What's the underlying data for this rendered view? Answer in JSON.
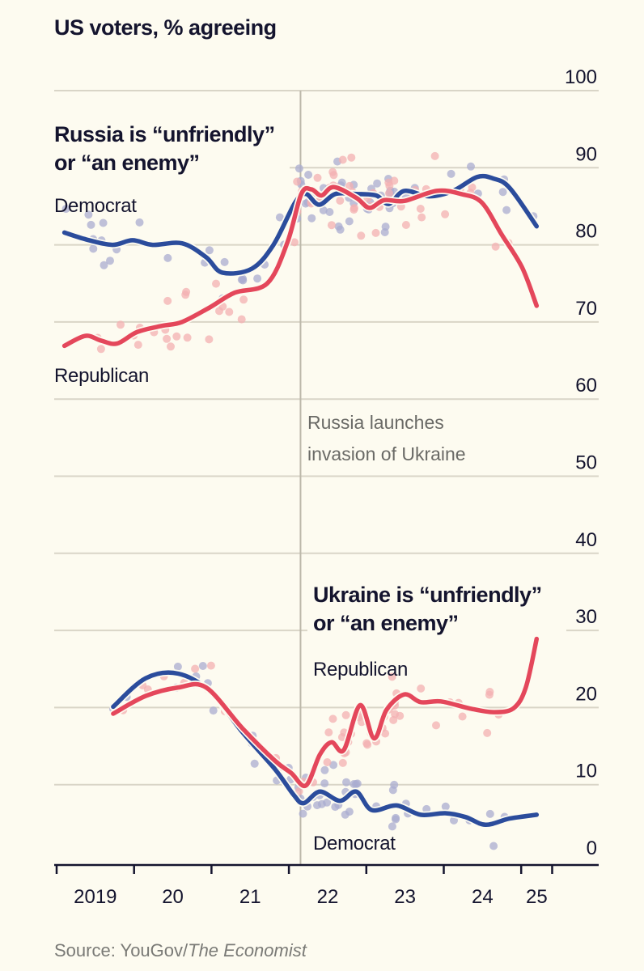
{
  "chart_data": {
    "type": "line",
    "title": "US voters, % agreeing",
    "source_prefix": "Source: YouGov/",
    "source_italic": "The Economist",
    "ylabel": "% agreeing",
    "ylim": [
      0,
      100
    ],
    "yticks": [
      0,
      10,
      20,
      30,
      40,
      50,
      60,
      70,
      80,
      90,
      100
    ],
    "xlim": [
      2019.0,
      2025.4
    ],
    "xticks": [
      2019,
      2020,
      2021,
      2022,
      2023,
      2024,
      2025,
      2025.4
    ],
    "xtick_labels": [
      {
        "label": "2019",
        "at": 2019.5
      },
      {
        "label": "20",
        "at": 2020.5
      },
      {
        "label": "21",
        "at": 2021.5
      },
      {
        "label": "22",
        "at": 2022.5
      },
      {
        "label": "23",
        "at": 2023.5
      },
      {
        "label": "24",
        "at": 2024.5
      },
      {
        "label": "25",
        "at": 2025.2
      }
    ],
    "grid": true,
    "event": {
      "x": 2022.15,
      "label_lines": [
        "Russia launches",
        "invasion of Ukraine"
      ]
    },
    "colors": {
      "Democrat": "#2b4c9c",
      "Republican": "#e4475b",
      "Democrat_dots": "#a9acd0",
      "Republican_dots": "#f3b0b2",
      "background": "#fdfbf0",
      "grid": "#d9d5c7"
    },
    "panels": [
      {
        "title_lines": [
          "Russia is “unfriendly”",
          "or “an enemy”"
        ],
        "series": [
          {
            "name": "Democrat",
            "label": "Democrat",
            "x": [
              2019.1,
              2019.38,
              2019.72,
              2019.98,
              2020.24,
              2020.62,
              2020.93,
              2021.14,
              2021.52,
              2021.8,
              2022.08,
              2022.22,
              2022.39,
              2022.6,
              2022.87,
              2023.13,
              2023.29,
              2023.49,
              2023.81,
              2024.12,
              2024.43,
              2024.64,
              2024.85,
              2025.2
            ],
            "values": [
              81.6,
              80.7,
              80.0,
              80.6,
              80.0,
              80.2,
              78.4,
              76.4,
              76.9,
              80.0,
              85.5,
              86.6,
              85.2,
              86.6,
              86.6,
              86.4,
              85.3,
              87.0,
              86.3,
              87.0,
              88.8,
              88.6,
              87.4,
              82.4
            ]
          },
          {
            "name": "Republican",
            "label": "Republican",
            "x": [
              2019.1,
              2019.37,
              2019.57,
              2019.78,
              2020.04,
              2020.36,
              2020.62,
              2020.98,
              2021.3,
              2021.72,
              2021.98,
              2022.16,
              2022.29,
              2022.42,
              2022.58,
              2022.87,
              2023.04,
              2023.23,
              2023.49,
              2023.91,
              2024.22,
              2024.49,
              2024.75,
              2025.01,
              2025.2
            ],
            "values": [
              66.9,
              68.2,
              67.6,
              67.2,
              68.7,
              69.5,
              70.0,
              71.9,
              73.8,
              75.0,
              80.3,
              86.6,
              87.2,
              86.4,
              87.5,
              86.1,
              84.8,
              85.8,
              85.7,
              87.0,
              86.6,
              85.5,
              81.3,
              77.1,
              72.1
            ]
          }
        ]
      },
      {
        "title_lines": [
          "Ukraine is “unfriendly”",
          "or “an enemy”"
        ],
        "series": [
          {
            "name": "Democrat",
            "label": "Democrat",
            "x": [
              2019.73,
              2020.15,
              2020.57,
              2020.99,
              2021.4,
              2021.82,
              2022.06,
              2022.19,
              2022.4,
              2022.66,
              2022.87,
              2023.07,
              2023.39,
              2023.7,
              2024.02,
              2024.28,
              2024.54,
              2024.85,
              2025.2
            ],
            "values": [
              20.1,
              23.8,
              24.4,
              22.0,
              16.8,
              12.0,
              8.7,
              7.6,
              9.1,
              7.9,
              9.1,
              6.7,
              7.3,
              6.1,
              6.3,
              5.8,
              4.8,
              5.6,
              6.1
            ]
          },
          {
            "name": "Republican",
            "label": "Republican",
            "x": [
              2019.73,
              2020.15,
              2020.57,
              2020.93,
              2021.4,
              2021.82,
              2022.03,
              2022.22,
              2022.4,
              2022.55,
              2022.71,
              2022.92,
              2023.1,
              2023.26,
              2023.49,
              2023.7,
              2023.96,
              2024.33,
              2024.64,
              2024.9,
              2025.06,
              2025.2
            ],
            "values": [
              19.2,
              21.5,
              22.6,
              22.6,
              17.3,
              13.1,
              11.5,
              9.9,
              13.9,
              15.5,
              14.5,
              20.3,
              16.0,
              19.7,
              21.7,
              20.7,
              20.8,
              19.9,
              19.4,
              19.9,
              22.6,
              28.9
            ]
          }
        ]
      }
    ]
  }
}
